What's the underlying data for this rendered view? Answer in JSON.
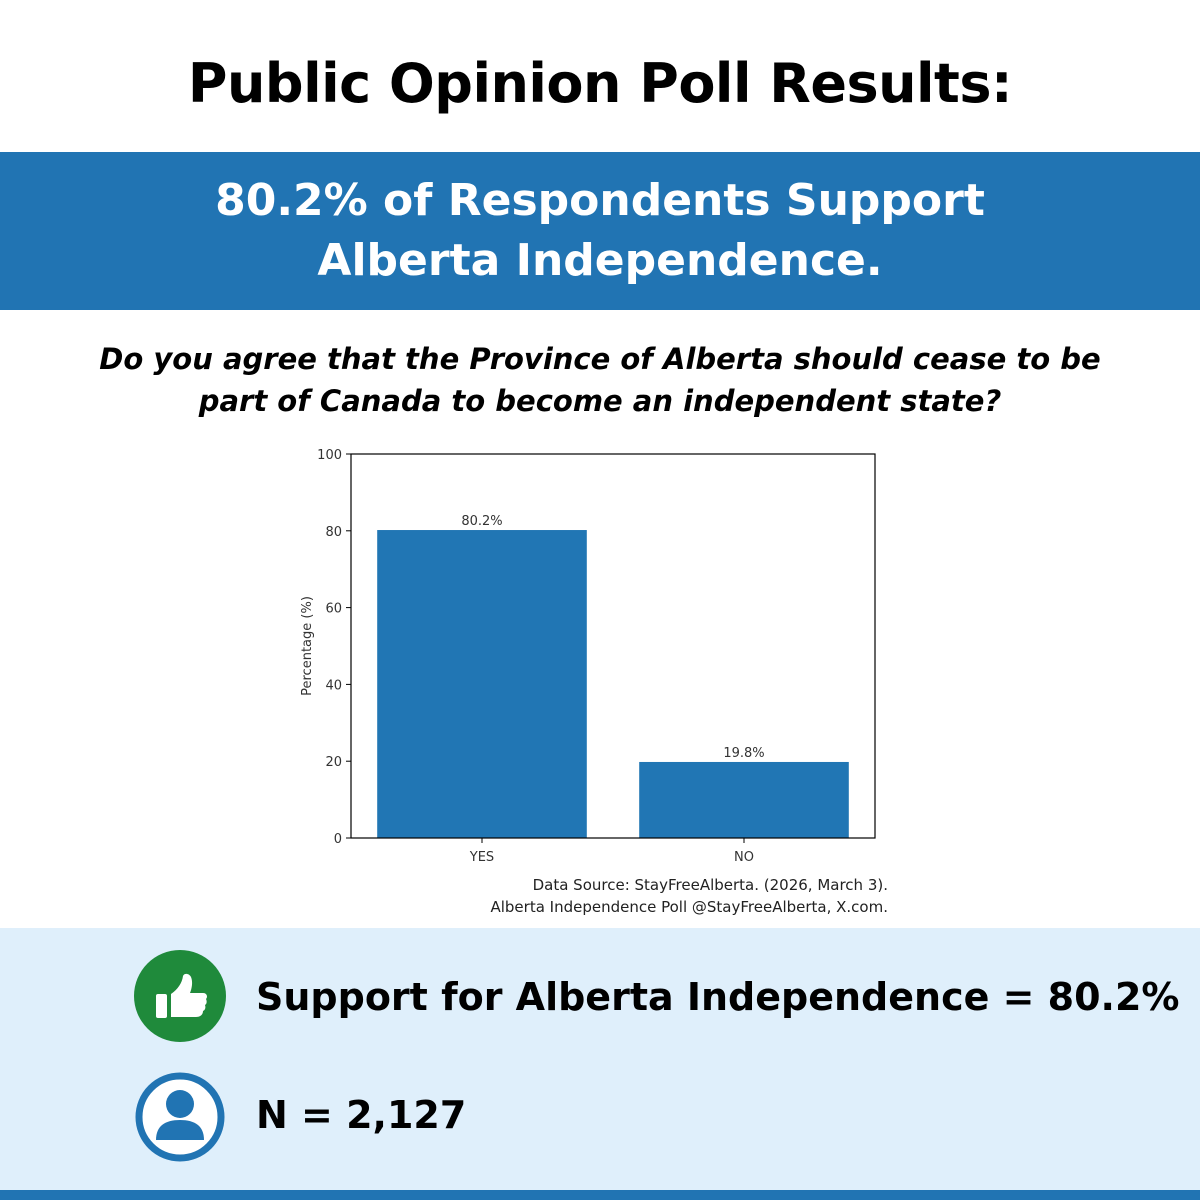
{
  "header": {
    "title": "Public Opinion Poll Results:",
    "banner_line1": "80.2% of Respondents Support",
    "banner_line2": "Alberta Independence."
  },
  "question": {
    "line1": "Do you agree that the Province of Alberta should cease to be",
    "line2": "part of Canada to become an independent state?"
  },
  "chart_data": {
    "type": "bar",
    "categories": [
      "YES",
      "NO"
    ],
    "values": [
      80.2,
      19.8
    ],
    "data_labels": [
      "80.2%",
      "19.8%"
    ],
    "ylabel": "Percentage (%)",
    "xlabel": "",
    "ylim": [
      0,
      100
    ],
    "yticks": [
      0,
      20,
      40,
      60,
      80,
      100
    ],
    "grid": false,
    "bar_color": "#2176b4"
  },
  "source": {
    "line1": "Data Source: StayFreeAlberta. (2026, March 3).",
    "line2": "Alberta Independence Poll @StayFreeAlberta, X.com."
  },
  "stats": {
    "support_text": "Support for Alberta Independence = 80.2%",
    "support_icon": "thumbs-up-icon",
    "sample_text": "N = 2,127",
    "sample_icon": "person-icon"
  },
  "colors": {
    "accent": "#2174b3",
    "panel": "#dfeffb",
    "thumbs_circle": "#1f8a3b"
  }
}
